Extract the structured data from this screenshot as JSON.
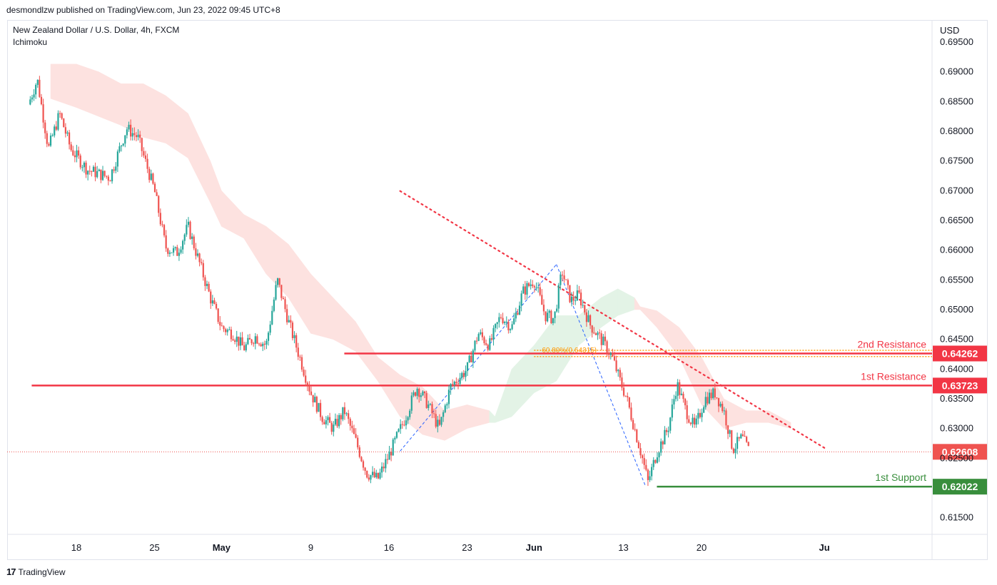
{
  "header": {
    "published": "desmondlzw published on TradingView.com, Jun 23, 2022 09:45 UTC+8",
    "symbol": "New Zealand Dollar / U.S. Dollar, 4h, FXCM",
    "indicator": "Ichimoku"
  },
  "footer": {
    "brand": "TradingView",
    "logo_glyph": "17"
  },
  "colors": {
    "up": "#26a69a",
    "down": "#ef5350",
    "resistance": "#f23645",
    "support": "#388e3c",
    "cloud_bear": "#fde2e0",
    "cloud_bull": "#e3f3e6",
    "trend": "#f23645",
    "fib": "#ff9800",
    "swing": "#2962ff"
  },
  "chart_data": {
    "type": "candlestick",
    "currency": "USD",
    "y_ticks": [
      0.695,
      0.69,
      0.685,
      0.68,
      0.675,
      0.67,
      0.665,
      0.66,
      0.655,
      0.65,
      0.645,
      0.64,
      0.635,
      0.63,
      0.625,
      0.615
    ],
    "y_tick_labels": [
      "0.69500",
      "0.69000",
      "0.68500",
      "0.68000",
      "0.67500",
      "0.67000",
      "0.66500",
      "0.66000",
      "0.65500",
      "0.65000",
      "0.64500",
      "0.64000",
      "0.63500",
      "0.63000",
      "0.62500",
      "0.61500"
    ],
    "ylim": [
      0.6106,
      0.6966
    ],
    "x_ticks": [
      {
        "label": "18",
        "day": 0
      },
      {
        "label": "25",
        "day": 7
      },
      {
        "label": "May",
        "day": 13
      },
      {
        "label": "9",
        "day": 21
      },
      {
        "label": "16",
        "day": 28
      },
      {
        "label": "23",
        "day": 35
      },
      {
        "label": "Jun",
        "day": 41
      },
      {
        "label": "13",
        "day": 49
      },
      {
        "label": "20",
        "day": 56
      },
      {
        "label": "Ju",
        "day": 67
      }
    ],
    "levels": [
      {
        "name": "2nd Resistance",
        "value": "0.64262",
        "price": 0.64262,
        "kind": "resistance",
        "from_day": 24.0
      },
      {
        "name": "1st Resistance",
        "value": "0.63723",
        "price": 0.63723,
        "kind": "resistance",
        "from_day": -4.0
      },
      {
        "name": "1st Support",
        "value": "0.62022",
        "price": 0.62022,
        "kind": "support",
        "from_day": 52.0
      }
    ],
    "last_price": {
      "value": "0.62608",
      "price": 0.62608
    },
    "fib_label": "60.80%(0.64315)",
    "fib_lines": [
      0.64315,
      0.6421
    ],
    "trendline": {
      "from": {
        "day": 29.0,
        "price": 0.66995
      },
      "to": {
        "day": 67.0,
        "price": 0.62675
      }
    },
    "swing_lines": [
      {
        "from": {
          "day": 29.0,
          "price": 0.6262
        },
        "to": {
          "day": 43.0,
          "price": 0.6576
        }
      },
      {
        "from": {
          "day": 43.0,
          "price": 0.6576
        },
        "to": {
          "day": 51.0,
          "price": 0.62022
        }
      }
    ],
    "anchors": [
      {
        "day": -4.3,
        "price": 0.6845
      },
      {
        "day": -3.5,
        "price": 0.6887
      },
      {
        "day": -2.5,
        "price": 0.677
      },
      {
        "day": -1.5,
        "price": 0.683
      },
      {
        "day": -0.5,
        "price": 0.677
      },
      {
        "day": 1.0,
        "price": 0.6735
      },
      {
        "day": 3.0,
        "price": 0.6722
      },
      {
        "day": 4.5,
        "price": 0.6805
      },
      {
        "day": 5.5,
        "price": 0.679
      },
      {
        "day": 7.0,
        "price": 0.67
      },
      {
        "day": 8.0,
        "price": 0.6605
      },
      {
        "day": 9.0,
        "price": 0.6595
      },
      {
        "day": 10.0,
        "price": 0.664
      },
      {
        "day": 11.0,
        "price": 0.658
      },
      {
        "day": 12.0,
        "price": 0.652
      },
      {
        "day": 13.0,
        "price": 0.647
      },
      {
        "day": 14.0,
        "price": 0.646
      },
      {
        "day": 15.0,
        "price": 0.6435
      },
      {
        "day": 16.0,
        "price": 0.6455
      },
      {
        "day": 17.0,
        "price": 0.644
      },
      {
        "day": 18.0,
        "price": 0.655
      },
      {
        "day": 19.0,
        "price": 0.648
      },
      {
        "day": 20.0,
        "price": 0.642
      },
      {
        "day": 21.0,
        "price": 0.636
      },
      {
        "day": 22.0,
        "price": 0.632
      },
      {
        "day": 23.0,
        "price": 0.63
      },
      {
        "day": 24.0,
        "price": 0.633
      },
      {
        "day": 25.0,
        "price": 0.628
      },
      {
        "day": 26.0,
        "price": 0.6225
      },
      {
        "day": 27.0,
        "price": 0.6215
      },
      {
        "day": 28.0,
        "price": 0.6255
      },
      {
        "day": 29.5,
        "price": 0.632
      },
      {
        "day": 30.5,
        "price": 0.637
      },
      {
        "day": 31.5,
        "price": 0.634
      },
      {
        "day": 32.5,
        "price": 0.63
      },
      {
        "day": 33.5,
        "price": 0.637
      },
      {
        "day": 35.0,
        "price": 0.64
      },
      {
        "day": 36.0,
        "price": 0.646
      },
      {
        "day": 37.0,
        "price": 0.644
      },
      {
        "day": 38.0,
        "price": 0.649
      },
      {
        "day": 39.0,
        "price": 0.647
      },
      {
        "day": 40.0,
        "price": 0.653
      },
      {
        "day": 41.0,
        "price": 0.655
      },
      {
        "day": 42.0,
        "price": 0.649
      },
      {
        "day": 42.8,
        "price": 0.6485
      },
      {
        "day": 43.5,
        "price": 0.6565
      },
      {
        "day": 44.3,
        "price": 0.6515
      },
      {
        "day": 45.0,
        "price": 0.6525
      },
      {
        "day": 46.0,
        "price": 0.6475
      },
      {
        "day": 47.0,
        "price": 0.645
      },
      {
        "day": 48.0,
        "price": 0.642
      },
      {
        "day": 48.7,
        "price": 0.638
      },
      {
        "day": 49.3,
        "price": 0.635
      },
      {
        "day": 50.0,
        "price": 0.63
      },
      {
        "day": 50.7,
        "price": 0.625
      },
      {
        "day": 51.2,
        "price": 0.621
      },
      {
        "day": 52.0,
        "price": 0.626
      },
      {
        "day": 53.0,
        "price": 0.63
      },
      {
        "day": 53.8,
        "price": 0.6375
      },
      {
        "day": 54.6,
        "price": 0.633
      },
      {
        "day": 55.4,
        "price": 0.63
      },
      {
        "day": 56.3,
        "price": 0.635
      },
      {
        "day": 57.2,
        "price": 0.636
      },
      {
        "day": 58.0,
        "price": 0.633
      },
      {
        "day": 58.8,
        "price": 0.6265
      },
      {
        "day": 59.6,
        "price": 0.6285
      },
      {
        "day": 60.3,
        "price": 0.6261
      }
    ],
    "cloud": [
      {
        "day": -2.3,
        "a": 0.6913,
        "b": 0.6855,
        "bull": false
      },
      {
        "day": 0.0,
        "a": 0.6913,
        "b": 0.684,
        "bull": false
      },
      {
        "day": 2.0,
        "a": 0.69,
        "b": 0.6825,
        "bull": false
      },
      {
        "day": 4.0,
        "a": 0.688,
        "b": 0.681,
        "bull": false
      },
      {
        "day": 6.0,
        "a": 0.688,
        "b": 0.679,
        "bull": false
      },
      {
        "day": 8.0,
        "a": 0.686,
        "b": 0.678,
        "bull": false
      },
      {
        "day": 10.0,
        "a": 0.683,
        "b": 0.6755,
        "bull": false
      },
      {
        "day": 12.0,
        "a": 0.675,
        "b": 0.668,
        "bull": false
      },
      {
        "day": 13.0,
        "a": 0.67,
        "b": 0.664,
        "bull": false
      },
      {
        "day": 15.0,
        "a": 0.666,
        "b": 0.662,
        "bull": false
      },
      {
        "day": 17.0,
        "a": 0.664,
        "b": 0.656,
        "bull": false
      },
      {
        "day": 19.0,
        "a": 0.661,
        "b": 0.652,
        "bull": false
      },
      {
        "day": 21.0,
        "a": 0.656,
        "b": 0.646,
        "bull": false
      },
      {
        "day": 23.0,
        "a": 0.652,
        "b": 0.645,
        "bull": false
      },
      {
        "day": 25.0,
        "a": 0.648,
        "b": 0.643,
        "bull": false
      },
      {
        "day": 27.0,
        "a": 0.642,
        "b": 0.638,
        "bull": false
      },
      {
        "day": 29.0,
        "a": 0.639,
        "b": 0.632,
        "bull": false
      },
      {
        "day": 31.0,
        "a": 0.637,
        "b": 0.629,
        "bull": false
      },
      {
        "day": 33.0,
        "a": 0.633,
        "b": 0.628,
        "bull": false
      },
      {
        "day": 35.0,
        "a": 0.634,
        "b": 0.63,
        "bull": false
      },
      {
        "day": 37.0,
        "a": 0.633,
        "b": 0.631,
        "bull": false
      },
      {
        "day": 37.5,
        "a": 0.632,
        "b": 0.631,
        "bull": true
      },
      {
        "day": 39.0,
        "a": 0.64,
        "b": 0.632,
        "bull": true
      },
      {
        "day": 41.0,
        "a": 0.644,
        "b": 0.636,
        "bull": true
      },
      {
        "day": 43.0,
        "a": 0.649,
        "b": 0.638,
        "bull": true
      },
      {
        "day": 45.0,
        "a": 0.649,
        "b": 0.644,
        "bull": true
      },
      {
        "day": 47.0,
        "a": 0.652,
        "b": 0.647,
        "bull": true
      },
      {
        "day": 48.5,
        "a": 0.6535,
        "b": 0.649,
        "bull": true
      },
      {
        "day": 50.0,
        "a": 0.652,
        "b": 0.65,
        "bull": true
      },
      {
        "day": 50.5,
        "a": 0.6505,
        "b": 0.65,
        "bull": false
      },
      {
        "day": 52.0,
        "a": 0.6498,
        "b": 0.647,
        "bull": false
      },
      {
        "day": 54.0,
        "a": 0.647,
        "b": 0.642,
        "bull": false
      },
      {
        "day": 56.0,
        "a": 0.642,
        "b": 0.634,
        "bull": false
      },
      {
        "day": 58.0,
        "a": 0.635,
        "b": 0.63,
        "bull": false
      },
      {
        "day": 60.0,
        "a": 0.633,
        "b": 0.631,
        "bull": false
      },
      {
        "day": 62.0,
        "a": 0.633,
        "b": 0.631,
        "bull": false
      },
      {
        "day": 64.0,
        "a": 0.631,
        "b": 0.63,
        "bull": false
      }
    ]
  }
}
